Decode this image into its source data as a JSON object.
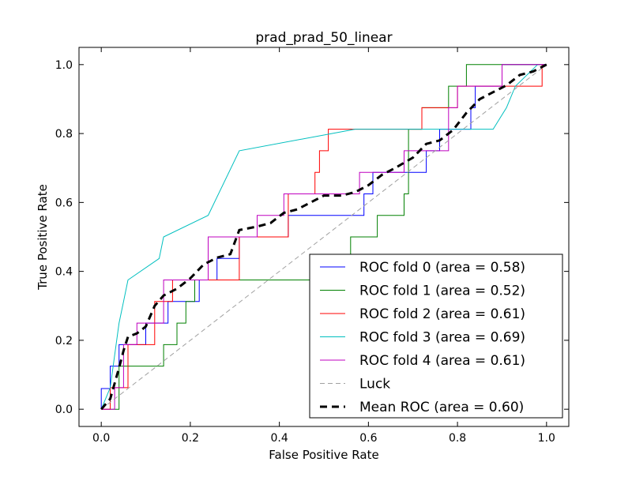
{
  "chart_data": {
    "type": "line",
    "title": "prad_prad_50_linear",
    "xlabel": "False Positive Rate",
    "ylabel": "True Positive Rate",
    "xlim": [
      -0.05,
      1.05
    ],
    "ylim": [
      -0.05,
      1.05
    ],
    "x_ticks": [
      "0.0",
      "0.2",
      "0.4",
      "0.6",
      "0.8",
      "1.0"
    ],
    "y_ticks": [
      "0.0",
      "0.2",
      "0.4",
      "0.6",
      "0.8",
      "1.0"
    ],
    "grid": false,
    "legend_position": "lower-right",
    "series": [
      {
        "name": "ROC fold 0 (area = 0.58)",
        "color": "#0000ff",
        "style": "solid",
        "x": [
          0.0,
          0.0,
          0.02,
          0.02,
          0.04,
          0.04,
          0.1,
          0.1,
          0.15,
          0.15,
          0.22,
          0.22,
          0.26,
          0.26,
          0.31,
          0.31,
          0.42,
          0.42,
          0.59,
          0.59,
          0.61,
          0.61,
          0.73,
          0.73,
          0.76,
          0.76,
          0.83,
          0.83,
          0.84,
          0.84,
          0.9,
          0.9,
          1.0
        ],
        "y": [
          0.0,
          0.06,
          0.06,
          0.125,
          0.125,
          0.1875,
          0.1875,
          0.25,
          0.25,
          0.3125,
          0.3125,
          0.375,
          0.375,
          0.4375,
          0.4375,
          0.5,
          0.5,
          0.5625,
          0.5625,
          0.625,
          0.625,
          0.6875,
          0.6875,
          0.75,
          0.75,
          0.8125,
          0.8125,
          0.875,
          0.875,
          0.9375,
          0.9375,
          1.0,
          1.0
        ]
      },
      {
        "name": "ROC fold 1 (area = 0.52)",
        "color": "#008000",
        "style": "solid",
        "x": [
          0.0,
          0.04,
          0.04,
          0.14,
          0.14,
          0.17,
          0.17,
          0.19,
          0.19,
          0.21,
          0.21,
          0.56,
          0.56,
          0.62,
          0.62,
          0.68,
          0.68,
          0.69,
          0.69,
          0.72,
          0.72,
          0.78,
          0.78,
          0.82,
          0.82,
          0.83,
          0.83,
          1.0
        ],
        "y": [
          0.0,
          0.0,
          0.125,
          0.125,
          0.1875,
          0.1875,
          0.25,
          0.25,
          0.3125,
          0.3125,
          0.375,
          0.375,
          0.5,
          0.5,
          0.5625,
          0.5625,
          0.625,
          0.625,
          0.8125,
          0.8125,
          0.875,
          0.875,
          0.9375,
          0.9375,
          1.0,
          1.0,
          1.0,
          1.0
        ]
      },
      {
        "name": "ROC fold 2 (area = 0.61)",
        "color": "#ff0000",
        "style": "solid",
        "x": [
          0.0,
          0.02,
          0.02,
          0.06,
          0.06,
          0.12,
          0.12,
          0.16,
          0.16,
          0.24,
          0.24,
          0.31,
          0.31,
          0.42,
          0.42,
          0.48,
          0.48,
          0.49,
          0.49,
          0.51,
          0.51,
          0.59,
          0.59,
          0.72,
          0.72,
          0.8,
          0.8,
          0.84,
          0.84,
          0.9,
          0.9,
          0.99,
          0.99
        ],
        "y": [
          0.0,
          0.0,
          0.0625,
          0.0625,
          0.1875,
          0.1875,
          0.3125,
          0.3125,
          0.375,
          0.375,
          0.375,
          0.375,
          0.5,
          0.5,
          0.625,
          0.625,
          0.6875,
          0.6875,
          0.75,
          0.75,
          0.8125,
          0.8125,
          0.8125,
          0.8125,
          0.875,
          0.875,
          0.9375,
          0.9375,
          0.9375,
          0.9375,
          0.9375,
          0.9375,
          1.0
        ]
      },
      {
        "name": "ROC fold 3 (area = 0.69)",
        "color": "#00bfbf",
        "style": "solid",
        "x": [
          0.0,
          0.0,
          0.02,
          0.02,
          0.04,
          0.04,
          0.05,
          0.05,
          0.06,
          0.06,
          0.13,
          0.13,
          0.14,
          0.14,
          0.24,
          0.24,
          0.31,
          0.31,
          0.57,
          0.57,
          0.72,
          0.72,
          0.88,
          0.88,
          0.91,
          0.91,
          0.93,
          0.93,
          0.98
        ],
        "y": [
          0.0,
          0.0,
          0.0625,
          0.0625,
          0.25,
          0.25,
          0.3125,
          0.3125,
          0.375,
          0.375,
          0.4375,
          0.4375,
          0.5,
          0.5,
          0.5625,
          0.5625,
          0.75,
          0.75,
          0.8125,
          0.8125,
          0.8125,
          0.8125,
          0.8125,
          0.8125,
          0.875,
          0.875,
          0.9375,
          0.9375,
          1.0
        ]
      },
      {
        "name": "ROC fold 4 (area = 0.61)",
        "color": "#bf00bf",
        "style": "solid",
        "x": [
          0.0,
          0.03,
          0.03,
          0.05,
          0.05,
          0.06,
          0.06,
          0.08,
          0.08,
          0.09,
          0.09,
          0.14,
          0.14,
          0.16,
          0.16,
          0.24,
          0.24,
          0.35,
          0.35,
          0.41,
          0.41,
          0.58,
          0.58,
          0.68,
          0.68,
          0.78,
          0.78,
          0.8,
          0.8,
          0.9,
          0.9,
          1.0
        ],
        "y": [
          0.0,
          0.0,
          0.0625,
          0.0625,
          0.1875,
          0.1875,
          0.1875,
          0.1875,
          0.25,
          0.25,
          0.25,
          0.25,
          0.375,
          0.375,
          0.375,
          0.375,
          0.5,
          0.5,
          0.5625,
          0.5625,
          0.625,
          0.625,
          0.6875,
          0.6875,
          0.75,
          0.75,
          0.875,
          0.875,
          0.9375,
          0.9375,
          1.0,
          1.0
        ]
      },
      {
        "name": "Luck",
        "color": "#a0a0a0",
        "style": "dashed",
        "x": [
          0.0,
          1.0
        ],
        "y": [
          0.0,
          1.0
        ]
      },
      {
        "name": "Mean ROC (area = 0.60)",
        "color": "#000000",
        "style": "bold-dashed",
        "x": [
          0.0,
          0.02,
          0.04,
          0.05,
          0.06,
          0.08,
          0.1,
          0.12,
          0.14,
          0.17,
          0.2,
          0.23,
          0.26,
          0.29,
          0.31,
          0.35,
          0.38,
          0.41,
          0.44,
          0.47,
          0.5,
          0.54,
          0.57,
          0.6,
          0.63,
          0.66,
          0.7,
          0.73,
          0.76,
          0.79,
          0.82,
          0.85,
          0.88,
          0.91,
          0.94,
          0.97,
          1.0
        ],
        "y": [
          0.0,
          0.03,
          0.12,
          0.17,
          0.21,
          0.22,
          0.24,
          0.3,
          0.33,
          0.35,
          0.38,
          0.42,
          0.44,
          0.45,
          0.52,
          0.53,
          0.54,
          0.57,
          0.58,
          0.6,
          0.62,
          0.62,
          0.63,
          0.65,
          0.68,
          0.7,
          0.73,
          0.77,
          0.78,
          0.81,
          0.86,
          0.9,
          0.92,
          0.94,
          0.97,
          0.98,
          1.0
        ]
      }
    ]
  }
}
